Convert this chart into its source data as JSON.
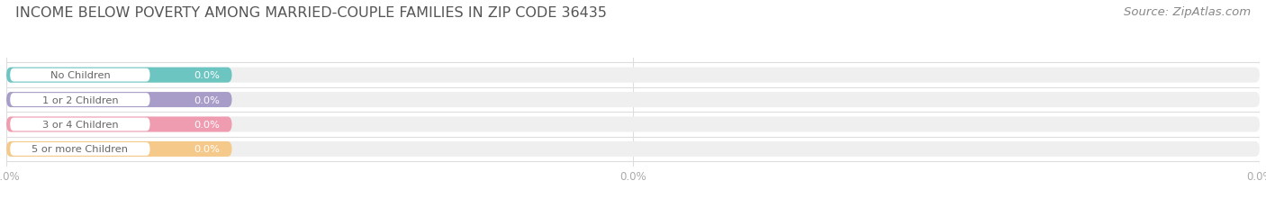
{
  "title": "INCOME BELOW POVERTY AMONG MARRIED-COUPLE FAMILIES IN ZIP CODE 36435",
  "source": "Source: ZipAtlas.com",
  "categories": [
    "No Children",
    "1 or 2 Children",
    "3 or 4 Children",
    "5 or more Children"
  ],
  "values": [
    0.0,
    0.0,
    0.0,
    0.0
  ],
  "bar_colors": [
    "#6cc5c1",
    "#a89cc8",
    "#f09cb0",
    "#f5c989"
  ],
  "bg_bar_color": "#efefef",
  "background_color": "#ffffff",
  "title_fontsize": 11.5,
  "source_fontsize": 9.5,
  "bar_height": 0.62,
  "tick_label": "0.0%",
  "bar_value_label": "0.0%",
  "label_text_color": "#666666",
  "tick_color": "#aaaaaa",
  "grid_color": "#dddddd"
}
